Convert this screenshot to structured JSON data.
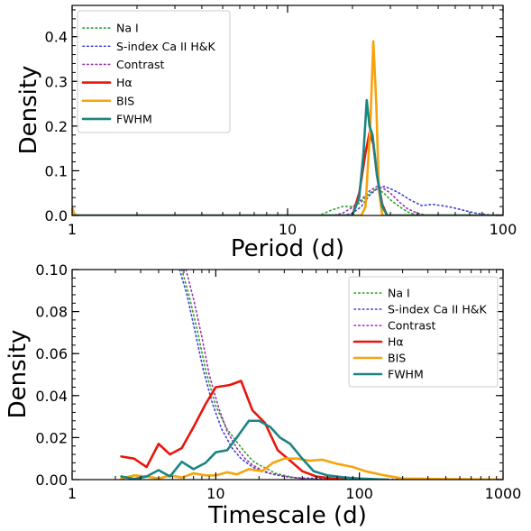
{
  "chart_data": [
    {
      "type": "line",
      "xlabel": "Period (d)",
      "ylabel": "Density",
      "xscale": "log",
      "xlim": [
        1,
        100
      ],
      "ylim": [
        0,
        0.47
      ],
      "xticks": [
        {
          "v": 1,
          "label": "1"
        },
        {
          "v": 10,
          "label": "10"
        },
        {
          "v": 100,
          "label": "100"
        }
      ],
      "yticks": [
        {
          "v": 0.0,
          "label": "0.0"
        },
        {
          "v": 0.1,
          "label": "0.1"
        },
        {
          "v": 0.2,
          "label": "0.2"
        },
        {
          "v": 0.3,
          "label": "0.3"
        },
        {
          "v": 0.4,
          "label": "0.4"
        }
      ],
      "legend": "top-left",
      "series": [
        {
          "name": "Na I",
          "style": "dotted",
          "color": "#2ca02c",
          "x": [
            1,
            14,
            16,
            18,
            20,
            22,
            24,
            26,
            28,
            30,
            33,
            36,
            40,
            100
          ],
          "y": [
            0,
            0,
            0.012,
            0.02,
            0.02,
            0.03,
            0.05,
            0.06,
            0.05,
            0.035,
            0.02,
            0.008,
            0,
            0
          ]
        },
        {
          "name": "S-index Ca II H&K",
          "style": "dotted",
          "color": "#3f3fd8",
          "x": [
            1,
            18,
            20,
            22,
            24,
            26,
            28,
            30,
            33,
            37,
            42,
            47,
            52,
            58,
            65,
            75,
            85,
            100
          ],
          "y": [
            0,
            0,
            0.005,
            0.02,
            0.045,
            0.06,
            0.065,
            0.06,
            0.05,
            0.035,
            0.022,
            0.025,
            0.022,
            0.018,
            0.012,
            0.005,
            0.002,
            0
          ]
        },
        {
          "name": "Contrast",
          "style": "dotted",
          "color": "#9932a8",
          "x": [
            1,
            16,
            18,
            20,
            22,
            24,
            26,
            28,
            30,
            33,
            36,
            40,
            45,
            100
          ],
          "y": [
            0,
            0,
            0.005,
            0.018,
            0.035,
            0.055,
            0.065,
            0.06,
            0.05,
            0.03,
            0.015,
            0.005,
            0,
            0
          ]
        },
        {
          "name": "Hα",
          "style": "solid",
          "color": "#e8160c",
          "x": [
            1,
            20,
            21.5,
            23,
            24,
            25,
            26,
            27.5,
            29,
            100
          ],
          "y": [
            0,
            0,
            0.05,
            0.14,
            0.185,
            0.16,
            0.09,
            0.025,
            0,
            0
          ]
        },
        {
          "name": "BIS",
          "style": "solid",
          "color": "#f7a30c",
          "x": [
            1,
            1.02,
            1.05,
            22,
            23,
            24.2,
            25,
            25.8,
            26.5,
            27.5,
            100
          ],
          "y": [
            0.018,
            0.005,
            0,
            0,
            0.02,
            0.2,
            0.39,
            0.25,
            0.06,
            0,
            0
          ]
        },
        {
          "name": "FWHM",
          "style": "solid",
          "color": "#1a8582",
          "x": [
            1,
            20,
            21.5,
            22.5,
            23.3,
            24,
            24.8,
            26,
            27.5,
            29,
            100
          ],
          "y": [
            0,
            0,
            0.04,
            0.14,
            0.258,
            0.2,
            0.18,
            0.09,
            0.02,
            0,
            0
          ]
        }
      ]
    },
    {
      "type": "line",
      "xlabel": "Timescale (d)",
      "ylabel": "Density",
      "xscale": "log",
      "xlim": [
        1,
        1000
      ],
      "ylim": [
        0,
        0.1
      ],
      "xticks": [
        {
          "v": 1,
          "label": "1"
        },
        {
          "v": 10,
          "label": "10"
        },
        {
          "v": 100,
          "label": "100"
        },
        {
          "v": 1000,
          "label": "1000"
        }
      ],
      "yticks": [
        {
          "v": 0.0,
          "label": "0.00"
        },
        {
          "v": 0.02,
          "label": "0.02"
        },
        {
          "v": 0.04,
          "label": "0.04"
        },
        {
          "v": 0.06,
          "label": "0.06"
        },
        {
          "v": 0.08,
          "label": "0.08"
        },
        {
          "v": 0.1,
          "label": "0.10"
        }
      ],
      "legend": "top-right",
      "series": [
        {
          "name": "Na I",
          "style": "dotted",
          "color": "#2ca02c",
          "x": [
            5.8,
            6.5,
            7.5,
            8.5,
            10,
            12,
            14,
            16,
            18,
            20,
            23,
            26,
            30,
            35,
            40,
            50,
            60
          ],
          "y": [
            0.1,
            0.088,
            0.07,
            0.052,
            0.035,
            0.024,
            0.018,
            0.013,
            0.009,
            0.007,
            0.005,
            0.003,
            0.002,
            0.001,
            0.0005,
            0.0002,
            0
          ]
        },
        {
          "name": "S-index Ca II H&K",
          "style": "dotted",
          "color": "#3f3fd8",
          "x": [
            5.6,
            6.3,
            7.2,
            8.2,
            9.5,
            11,
            13,
            15,
            18,
            21,
            25,
            30,
            35,
            40,
            50,
            60,
            100,
            200,
            400,
            1000
          ],
          "y": [
            0.1,
            0.088,
            0.07,
            0.052,
            0.036,
            0.024,
            0.015,
            0.01,
            0.006,
            0.004,
            0.0025,
            0.0015,
            0.001,
            0.0008,
            0.0006,
            0.0005,
            0.0003,
            0.0001,
            0,
            0
          ]
        },
        {
          "name": "Contrast",
          "style": "dotted",
          "color": "#9932a8",
          "x": [
            6.2,
            7,
            8,
            9,
            10.5,
            12,
            14,
            16,
            18,
            21,
            24,
            28,
            32,
            37,
            45,
            60
          ],
          "y": [
            0.1,
            0.086,
            0.068,
            0.05,
            0.034,
            0.023,
            0.015,
            0.01,
            0.007,
            0.0045,
            0.003,
            0.002,
            0.0012,
            0.0007,
            0.0003,
            0
          ]
        },
        {
          "name": "Hα",
          "style": "solid",
          "color": "#e8160c",
          "x": [
            2.2,
            2.7,
            3.3,
            4,
            4.8,
            5.8,
            7,
            8.5,
            10,
            12.5,
            15,
            18,
            22,
            27,
            33,
            40,
            50,
            65,
            80
          ],
          "y": [
            0.011,
            0.01,
            0.006,
            0.017,
            0.012,
            0.015,
            0.025,
            0.036,
            0.044,
            0.045,
            0.047,
            0.033,
            0.027,
            0.014,
            0.009,
            0.004,
            0.0015,
            0.0005,
            0
          ]
        },
        {
          "name": "BIS",
          "style": "solid",
          "color": "#f7a30c",
          "x": [
            2.2,
            2.7,
            3.3,
            4,
            4.8,
            5.8,
            7,
            8.5,
            10,
            12,
            14,
            17,
            21,
            25,
            30,
            37,
            45,
            55,
            70,
            90,
            110,
            150,
            200,
            1000
          ],
          "y": [
            0.0005,
            0.002,
            0.0015,
            0.0005,
            0.002,
            0.001,
            0.003,
            0.002,
            0.002,
            0.0035,
            0.0025,
            0.005,
            0.004,
            0.008,
            0.01,
            0.01,
            0.009,
            0.0095,
            0.0075,
            0.006,
            0.004,
            0.002,
            0.0005,
            0
          ]
        },
        {
          "name": "FWHM",
          "style": "solid",
          "color": "#1a8582",
          "x": [
            2.2,
            2.7,
            3.3,
            4,
            4.8,
            5.8,
            7,
            8.5,
            10,
            12,
            14,
            17,
            20,
            24,
            28,
            33,
            40,
            48,
            60,
            80,
            100,
            130,
            160
          ],
          "y": [
            0.0015,
            0.0003,
            0.0015,
            0.0045,
            0.0015,
            0.0085,
            0.005,
            0.008,
            0.013,
            0.014,
            0.02,
            0.028,
            0.028,
            0.025,
            0.02,
            0.017,
            0.01,
            0.004,
            0.002,
            0.001,
            0.0005,
            0.0002,
            0
          ]
        }
      ]
    }
  ]
}
